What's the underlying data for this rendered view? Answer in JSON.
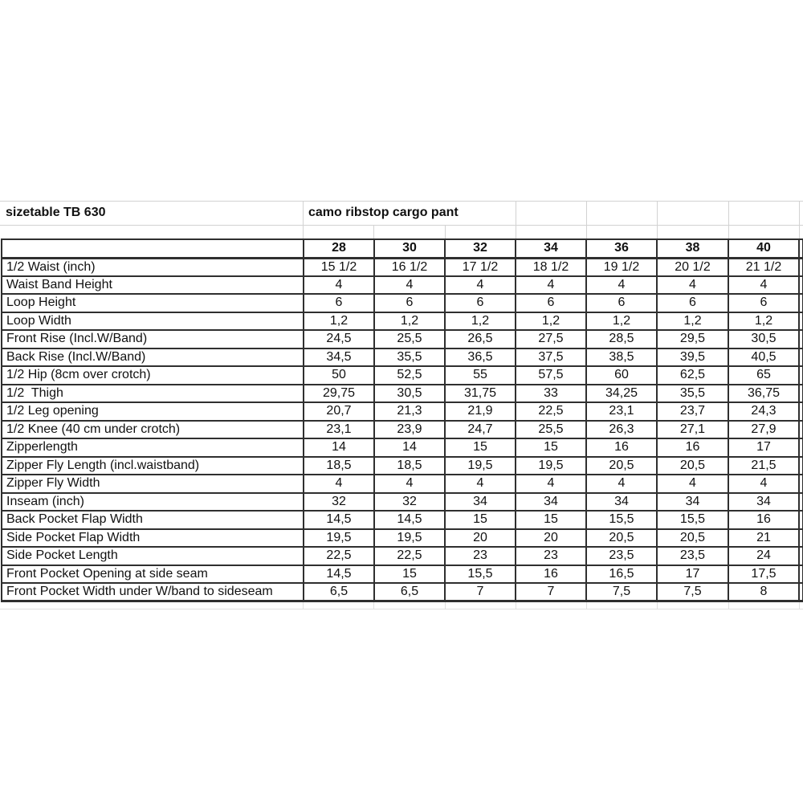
{
  "sheet": {
    "title_left": "sizetable TB 630",
    "title_right": "camo ribstop cargo pant"
  },
  "table": {
    "size_columns": [
      "28",
      "30",
      "32",
      "34",
      "36",
      "38",
      "40"
    ],
    "rows": [
      {
        "label": "1/2 Waist (inch)",
        "values": [
          "15 1/2",
          "16 1/2",
          "17 1/2",
          "18 1/2",
          "19 1/2",
          "20 1/2",
          "21 1/2"
        ]
      },
      {
        "label": "Waist Band Height",
        "values": [
          "4",
          "4",
          "4",
          "4",
          "4",
          "4",
          "4"
        ]
      },
      {
        "label": "Loop Height",
        "values": [
          "6",
          "6",
          "6",
          "6",
          "6",
          "6",
          "6"
        ]
      },
      {
        "label": "Loop Width",
        "values": [
          "1,2",
          "1,2",
          "1,2",
          "1,2",
          "1,2",
          "1,2",
          "1,2"
        ]
      },
      {
        "label": "Front Rise (Incl.W/Band)",
        "values": [
          "24,5",
          "25,5",
          "26,5",
          "27,5",
          "28,5",
          "29,5",
          "30,5"
        ]
      },
      {
        "label": "Back Rise (Incl.W/Band)",
        "values": [
          "34,5",
          "35,5",
          "36,5",
          "37,5",
          "38,5",
          "39,5",
          "40,5"
        ]
      },
      {
        "label": "1/2 Hip (8cm over crotch)",
        "values": [
          "50",
          "52,5",
          "55",
          "57,5",
          "60",
          "62,5",
          "65"
        ]
      },
      {
        "label": "1/2  Thigh",
        "values": [
          "29,75",
          "30,5",
          "31,75",
          "33",
          "34,25",
          "35,5",
          "36,75"
        ]
      },
      {
        "label": "1/2 Leg opening",
        "values": [
          "20,7",
          "21,3",
          "21,9",
          "22,5",
          "23,1",
          "23,7",
          "24,3"
        ]
      },
      {
        "label": "1/2 Knee (40 cm under crotch)",
        "values": [
          "23,1",
          "23,9",
          "24,7",
          "25,5",
          "26,3",
          "27,1",
          "27,9"
        ]
      },
      {
        "label": "Zipperlength",
        "values": [
          "14",
          "14",
          "15",
          "15",
          "16",
          "16",
          "17"
        ]
      },
      {
        "label": "Zipper Fly Length (incl.waistband)",
        "values": [
          "18,5",
          "18,5",
          "19,5",
          "19,5",
          "20,5",
          "20,5",
          "21,5"
        ]
      },
      {
        "label": "Zipper Fly Width",
        "values": [
          "4",
          "4",
          "4",
          "4",
          "4",
          "4",
          "4"
        ]
      },
      {
        "label": "Inseam (inch)",
        "values": [
          "32",
          "32",
          "34",
          "34",
          "34",
          "34",
          "34"
        ]
      },
      {
        "label": "Back Pocket Flap Width",
        "values": [
          "14,5",
          "14,5",
          "15",
          "15",
          "15,5",
          "15,5",
          "16"
        ]
      },
      {
        "label": "Side Pocket Flap Width",
        "values": [
          "19,5",
          "19,5",
          "20",
          "20",
          "20,5",
          "20,5",
          "21"
        ]
      },
      {
        "label": "Side Pocket Length",
        "values": [
          "22,5",
          "22,5",
          "23",
          "23",
          "23,5",
          "23,5",
          "24"
        ]
      },
      {
        "label": "Front Pocket Opening at side seam",
        "values": [
          "14,5",
          "15",
          "15,5",
          "16",
          "16,5",
          "17",
          "17,5"
        ]
      },
      {
        "label": "Front Pocket Width under W/band to sideseam",
        "values": [
          "6,5",
          "6,5",
          "7",
          "7",
          "7,5",
          "7,5",
          "8"
        ]
      }
    ]
  },
  "colors": {
    "background": "#ffffff",
    "text": "#111111",
    "table_border": "#2f2f2f",
    "gridline": "#d2d2d2"
  }
}
